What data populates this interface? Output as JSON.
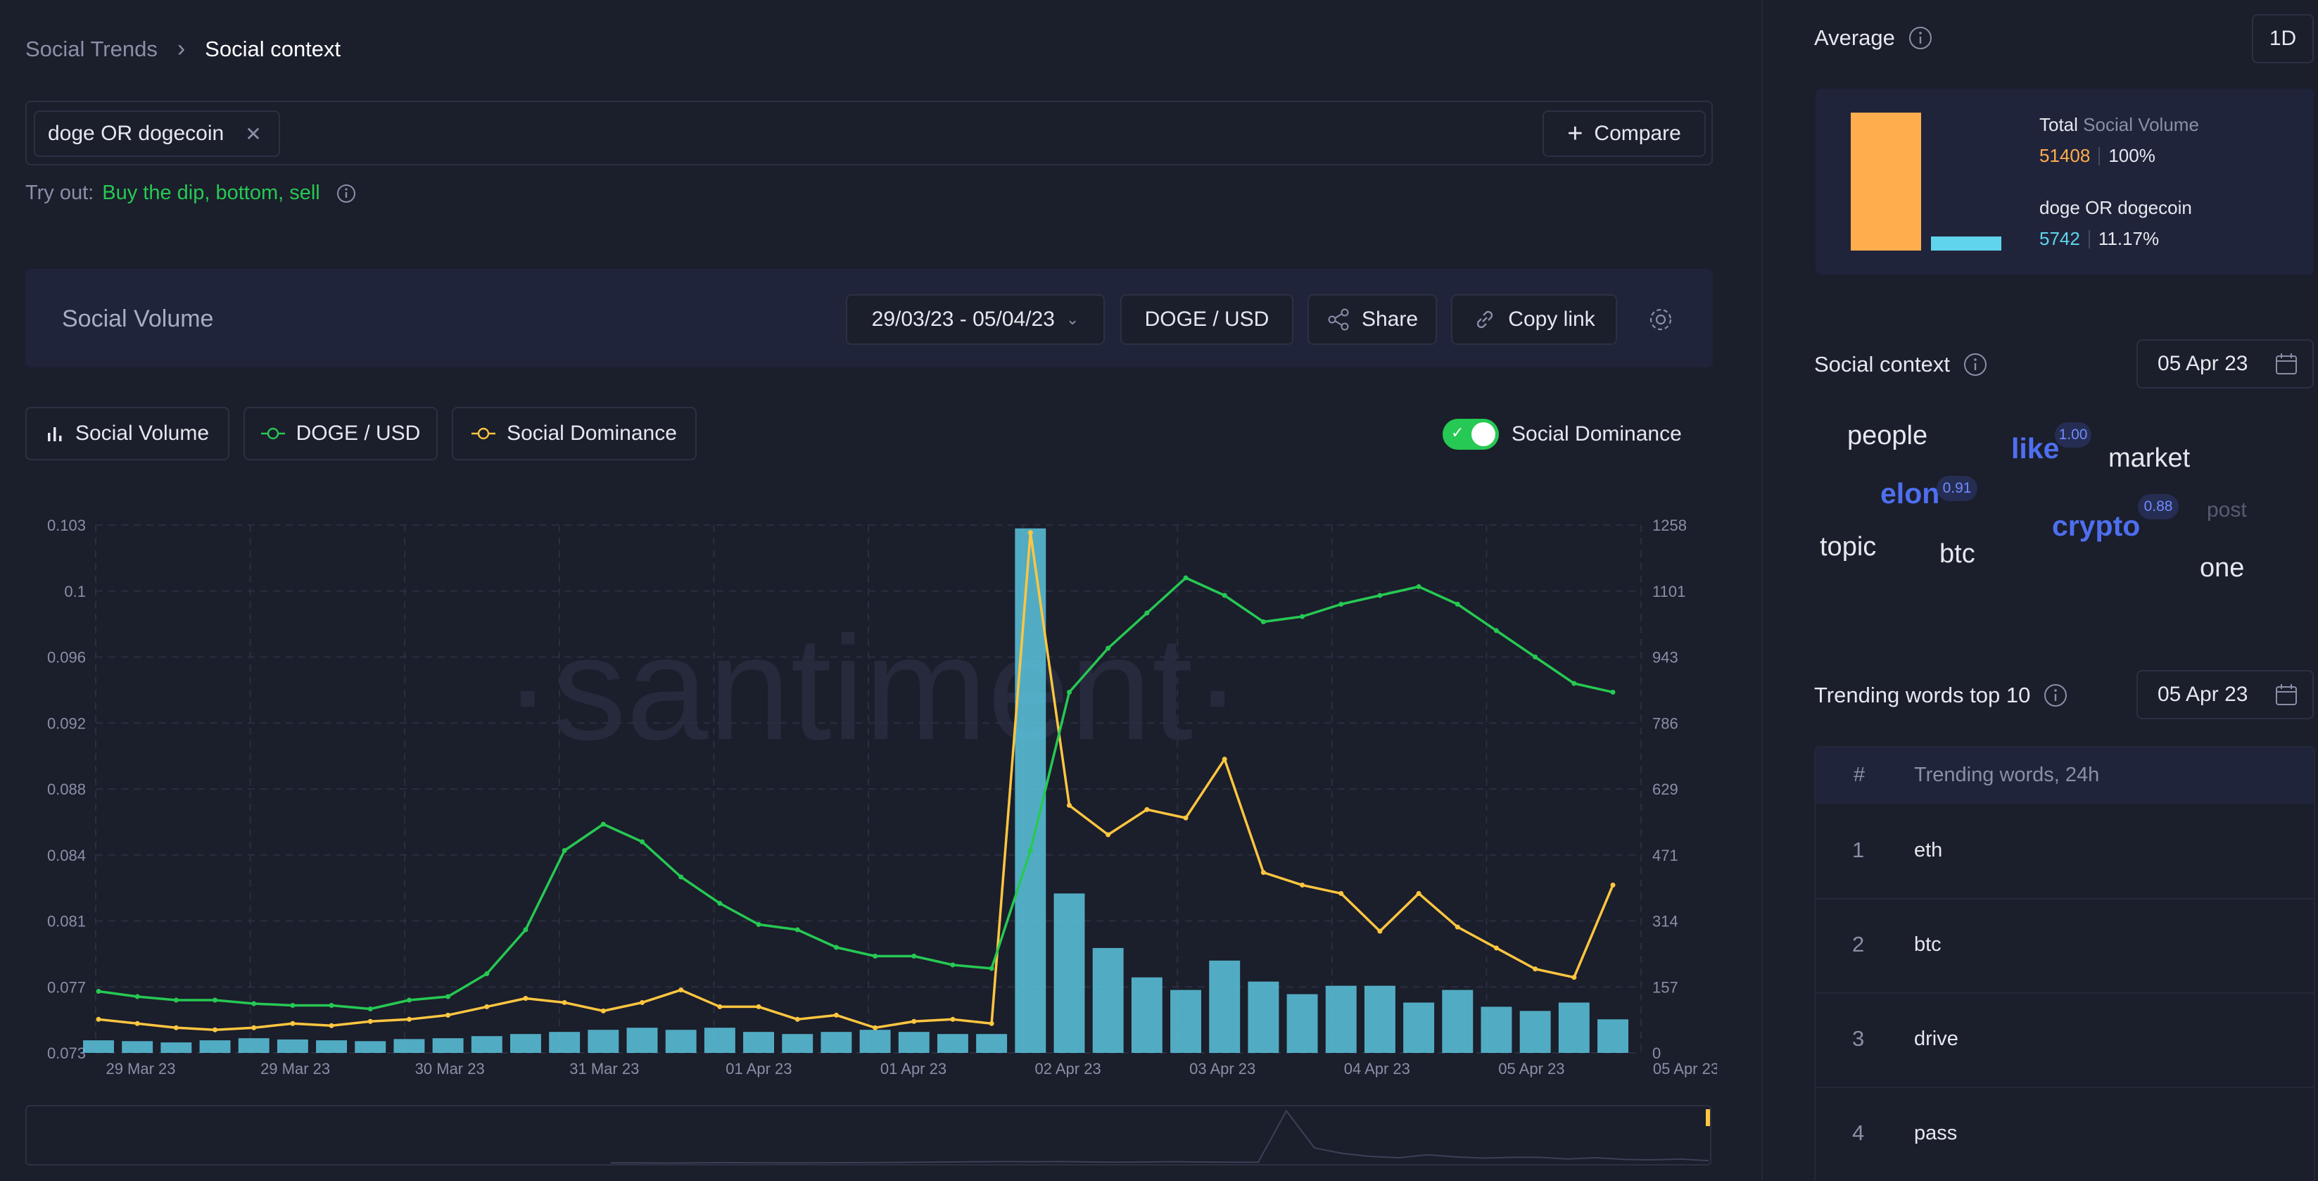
{
  "breadcrumb": {
    "parent": "Social Trends",
    "separator": "›",
    "current": "Social context"
  },
  "search": {
    "chip": "doge OR dogecoin",
    "compare": "Compare"
  },
  "tryout": {
    "prefix": "Try out:",
    "links": "Buy the dip, bottom, sell"
  },
  "toolbar": {
    "title": "Social Volume",
    "date_range": "29/03/23 - 05/04/23",
    "pair": "DOGE / USD",
    "share": "Share",
    "copy_link": "Copy link"
  },
  "metrics": {
    "social_volume": "Social Volume",
    "doge_usd": "DOGE / USD",
    "social_dominance": "Social Dominance",
    "toggle_label": "Social Dominance",
    "toggle_on": true
  },
  "watermark": "·santiment·",
  "colors": {
    "accent_green": "#26c953",
    "line_green": "#26c953",
    "line_yellow": "#ffc640",
    "bars": "#5bc5de",
    "orange": "#ffad4d",
    "cyan": "#5fd4ec",
    "link_blue": "#4e6ff0"
  },
  "chart_data": {
    "type": "line",
    "x_ticks": [
      "29 Mar 23",
      "29 Mar 23",
      "30 Mar 23",
      "31 Mar 23",
      "01 Apr 23",
      "01 Apr 23",
      "02 Apr 23",
      "03 Apr 23",
      "04 Apr 23",
      "05 Apr 23",
      "05 Apr 23"
    ],
    "y_left": {
      "ticks": [
        "0.103",
        "0.1",
        "0.096",
        "0.092",
        "0.088",
        "0.084",
        "0.081",
        "0.077",
        "0.073"
      ],
      "range": [
        0.073,
        0.103
      ]
    },
    "y_right": {
      "ticks": [
        "1258",
        "1101",
        "943",
        "786",
        "629",
        "471",
        "314",
        "157",
        "0"
      ],
      "range": [
        0,
        1258
      ]
    },
    "series": [
      {
        "name": "DOGE / USD",
        "color": "#26c953",
        "axis": "left",
        "values": [
          0.0765,
          0.0762,
          0.076,
          0.076,
          0.0758,
          0.0757,
          0.0757,
          0.0755,
          0.076,
          0.0762,
          0.0775,
          0.08,
          0.0845,
          0.086,
          0.085,
          0.083,
          0.0815,
          0.0803,
          0.08,
          0.079,
          0.0785,
          0.0785,
          0.078,
          0.0778,
          0.0845,
          0.0935,
          0.096,
          0.098,
          0.1,
          0.099,
          0.0975,
          0.0978,
          0.0985,
          0.099,
          0.0995,
          0.0985,
          0.097,
          0.0955,
          0.094,
          0.0935
        ]
      },
      {
        "name": "Social Volume",
        "color": "#5bc5de",
        "axis": "right",
        "values": [
          30,
          28,
          25,
          30,
          35,
          32,
          30,
          28,
          33,
          35,
          40,
          45,
          50,
          55,
          60,
          55,
          60,
          50,
          45,
          50,
          55,
          50,
          45,
          45,
          1250,
          380,
          250,
          180,
          150,
          220,
          170,
          140,
          160,
          160,
          120,
          150,
          110,
          100,
          120,
          80
        ]
      },
      {
        "name": "Social Dominance",
        "color": "#ffc640",
        "axis": "right",
        "values": [
          80,
          70,
          60,
          55,
          60,
          70,
          65,
          75,
          80,
          90,
          110,
          130,
          120,
          100,
          120,
          150,
          110,
          110,
          80,
          90,
          60,
          75,
          80,
          70,
          1240,
          590,
          520,
          580,
          560,
          700,
          430,
          400,
          380,
          290,
          380,
          300,
          250,
          200,
          180,
          400
        ]
      }
    ]
  },
  "average": {
    "title": "Average",
    "period": "1D",
    "total_label": "Total",
    "total_metric": "Social Volume",
    "total_value": "51408",
    "total_pct": "100%",
    "query_label": "doge OR dogecoin",
    "query_value": "5742",
    "query_pct": "11.17%",
    "bars": [
      1.0,
      0.1117
    ]
  },
  "social_context": {
    "title": "Social context",
    "date": "05 Apr 23",
    "words": [
      {
        "w": "people",
        "score": ""
      },
      {
        "w": "like",
        "score": "1.00"
      },
      {
        "w": "market",
        "score": ""
      },
      {
        "w": "elon",
        "score": "0.91"
      },
      {
        "w": "post",
        "score": ""
      },
      {
        "w": "crypto",
        "score": "0.88"
      },
      {
        "w": "topic",
        "score": ""
      },
      {
        "w": "btc",
        "score": ""
      },
      {
        "w": "one",
        "score": ""
      }
    ]
  },
  "trending": {
    "title": "Trending words top 10",
    "date": "05 Apr 23",
    "col_num": "#",
    "col_words": "Trending words, 24h",
    "rows": [
      {
        "n": "1",
        "w": "eth"
      },
      {
        "n": "2",
        "w": "btc"
      },
      {
        "n": "3",
        "w": "drive"
      },
      {
        "n": "4",
        "w": "pass"
      }
    ]
  }
}
